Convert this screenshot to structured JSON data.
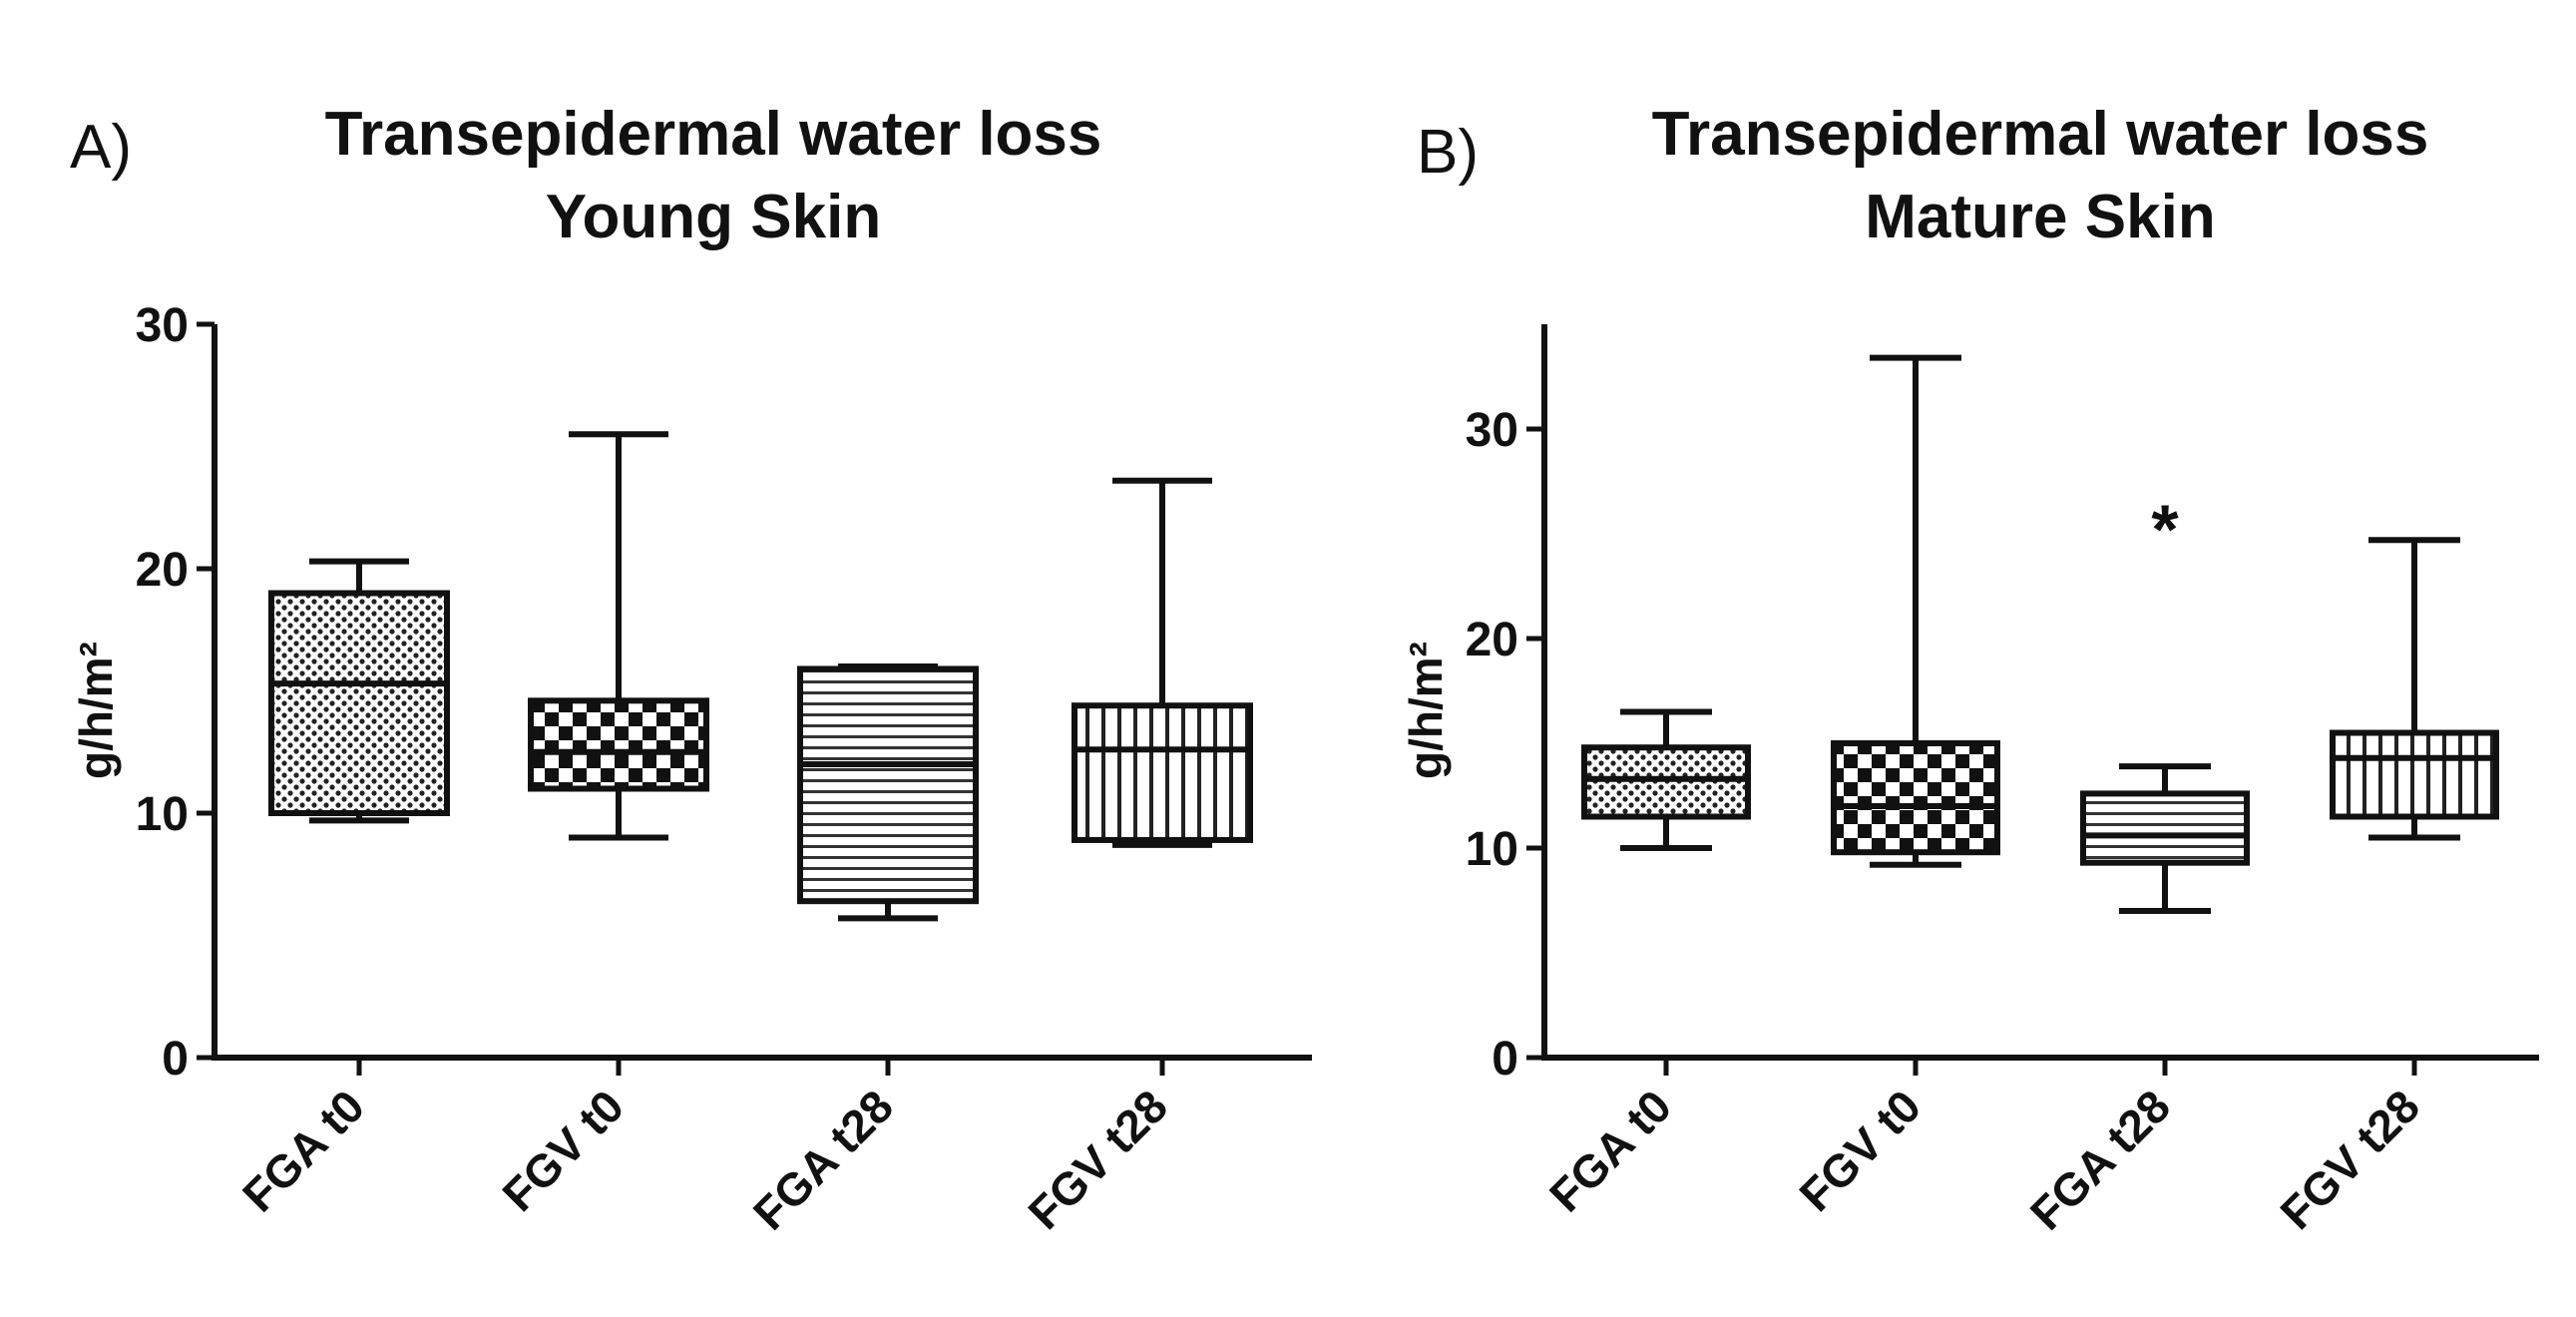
{
  "chart_data": [
    {
      "type": "boxplot",
      "panel": "A)",
      "title_line1": "Transepidermal water loss",
      "title_line2": "Young Skin",
      "ylabel": "g/h/m²",
      "ylim": [
        0,
        30
      ],
      "yticks": [
        0,
        10,
        20,
        30
      ],
      "categories": [
        "FGA t0",
        "FGV t0",
        "FGA t28",
        "FGV t28"
      ],
      "boxes": [
        {
          "min": 9.7,
          "q1": 10.0,
          "median": 15.3,
          "q3": 19.0,
          "max": 20.3,
          "pattern": "dots"
        },
        {
          "min": 9.0,
          "q1": 11.0,
          "median": 12.5,
          "q3": 14.6,
          "max": 25.5,
          "pattern": "checker"
        },
        {
          "min": 5.7,
          "q1": 6.4,
          "median": 12.0,
          "q3": 15.9,
          "max": 16.0,
          "pattern": "hlines"
        },
        {
          "min": 8.7,
          "q1": 8.9,
          "median": 12.6,
          "q3": 14.4,
          "max": 23.6,
          "pattern": "vlines"
        }
      ],
      "annotations": []
    },
    {
      "type": "boxplot",
      "panel": "B)",
      "title_line1": "Transepidermal water loss",
      "title_line2": "Mature Skin",
      "ylabel": "g/h/m²",
      "ylim": [
        0,
        35
      ],
      "yticks": [
        0,
        10,
        20,
        30
      ],
      "categories": [
        "FGA t0",
        "FGV t0",
        "FGA t28",
        "FGV t28"
      ],
      "boxes": [
        {
          "min": 10.0,
          "q1": 11.5,
          "median": 13.3,
          "q3": 14.8,
          "max": 16.5,
          "pattern": "dots"
        },
        {
          "min": 9.2,
          "q1": 9.8,
          "median": 12.0,
          "q3": 15.0,
          "max": 33.4,
          "pattern": "checker"
        },
        {
          "min": 7.0,
          "q1": 9.3,
          "median": 10.6,
          "q3": 12.6,
          "max": 13.9,
          "pattern": "hlines"
        },
        {
          "min": 10.5,
          "q1": 11.5,
          "median": 14.3,
          "q3": 15.5,
          "max": 24.7,
          "pattern": "vlines"
        }
      ],
      "annotations": [
        {
          "category_index": 2,
          "y": 25.5,
          "text": "*"
        }
      ]
    }
  ]
}
